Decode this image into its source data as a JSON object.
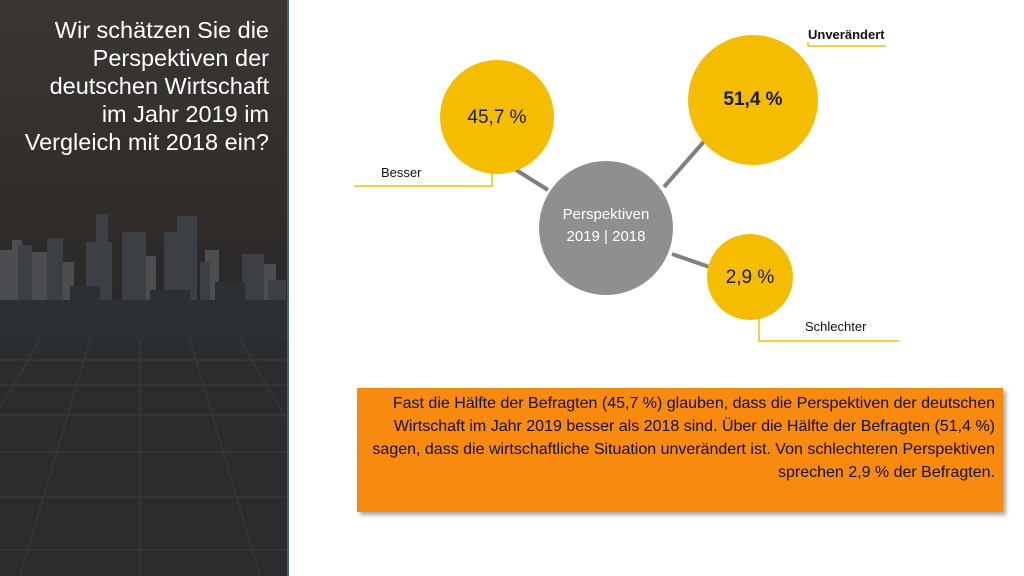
{
  "title": "Wir schätzen Sie die Perspektiven der deutschen Wirtschaft im Jahr 2019 im Vergleich mit 2018 ein?",
  "colors": {
    "accent_yellow": "#f5bd00",
    "hub_gray": "#8f8f8f",
    "connector_gray": "#808080",
    "callout_yellow": "#f5bd00",
    "summary_orange": "#f88a0f"
  },
  "hub": {
    "line1": "Perspektiven",
    "line2": "2019 | 2018"
  },
  "categories": [
    {
      "name": "Besser",
      "value": 45.7,
      "value_label": "45,7 %"
    },
    {
      "name": "Unverändert",
      "value": 51.4,
      "value_label": "51,4 %"
    },
    {
      "name": "Schlechter",
      "value": 2.9,
      "value_label": "2,9 %"
    }
  ],
  "summary": "Fast die Hälfte der Befragten (45,7 %) glauben, dass die Perspektiven der deutschen Wirtschaft im Jahr 2019 besser als 2018 sind. Über die Hälfte der Befragten (51,4 %) sagen, dass die wirtschaftliche Situation unverändert ist. Von schlechteren Perspektiven sprechen 2,9 % der Befragten."
}
